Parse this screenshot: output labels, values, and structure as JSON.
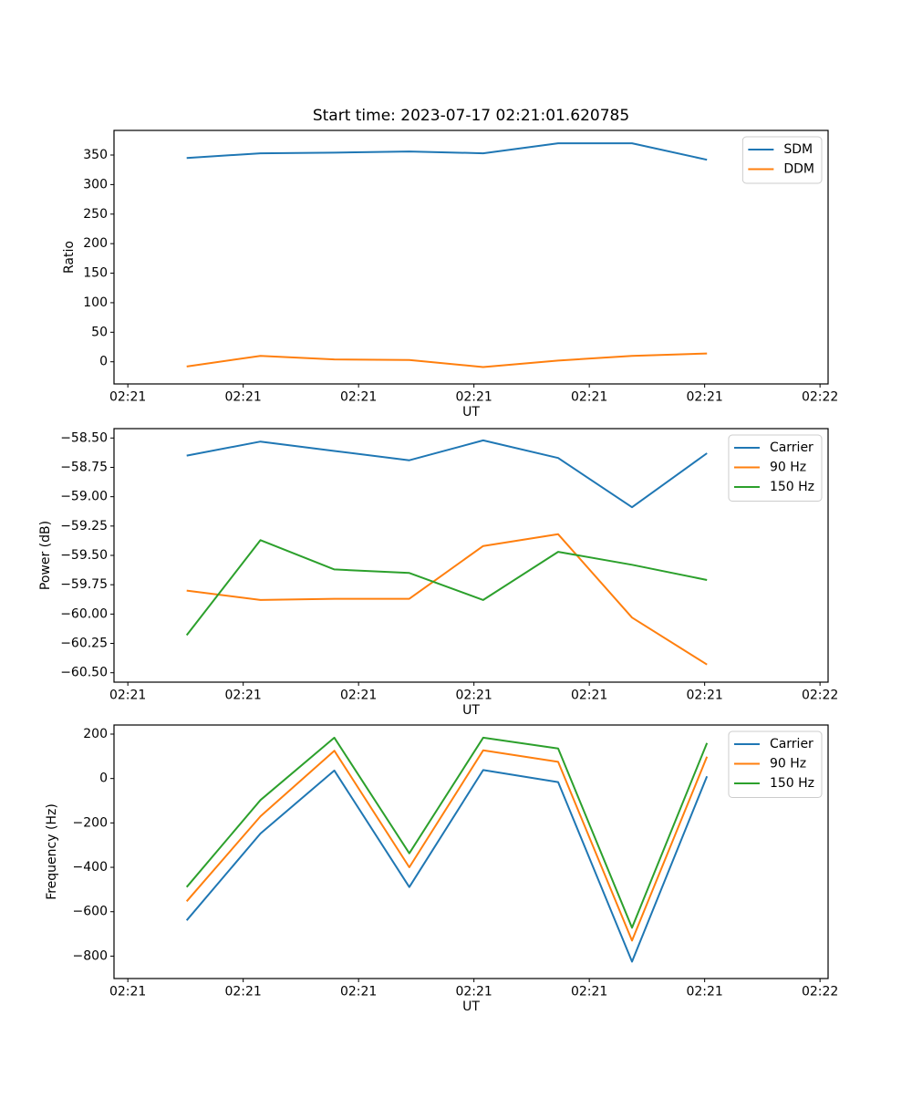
{
  "figure": {
    "title": "Start time: 2023-07-17 02:21:01.620785"
  },
  "colors": {
    "blue": "#1f77b4",
    "orange": "#ff7f0e",
    "green": "#2ca02c",
    "axis": "#000000",
    "legend_border": "#cccccc",
    "background": "#ffffff"
  },
  "x_axis": {
    "label": "UT",
    "tick_seconds": [
      0,
      10,
      20,
      30,
      40,
      50,
      60
    ],
    "tick_labels": [
      "02:21",
      "02:21",
      "02:21",
      "02:21",
      "02:21",
      "02:21",
      "02:22"
    ],
    "xlim_seconds": [
      -1.2,
      60.7
    ]
  },
  "x_seconds": [
    5.1,
    11.5,
    17.9,
    24.4,
    30.8,
    37.3,
    43.7,
    50.2
  ],
  "chart_data": [
    {
      "type": "line",
      "title": "",
      "xlabel": "UT",
      "ylabel": "Ratio",
      "grid": false,
      "legend_position": "upper right",
      "ylim": [
        -37.5,
        391.7
      ],
      "yticks": [
        0,
        50,
        100,
        150,
        200,
        250,
        300,
        350
      ],
      "ytick_labels": [
        "0",
        "50",
        "100",
        "150",
        "200",
        "250",
        "300",
        "350"
      ],
      "series": [
        {
          "name": "SDM",
          "color": "#1f77b4",
          "values": [
            345,
            353,
            354,
            356,
            353,
            370,
            370,
            342
          ]
        },
        {
          "name": "DDM",
          "color": "#ff7f0e",
          "values": [
            -8,
            10,
            4,
            3,
            -9,
            2,
            10,
            14
          ]
        }
      ]
    },
    {
      "type": "line",
      "title": "",
      "xlabel": "UT",
      "ylabel": "Power (dB)",
      "grid": false,
      "legend_position": "upper right",
      "ylim": [
        -60.58,
        -58.42
      ],
      "yticks": [
        -60.5,
        -60.25,
        -60.0,
        -59.75,
        -59.5,
        -59.25,
        -59.0,
        -58.75,
        -58.5
      ],
      "ytick_labels": [
        "−60.50",
        "−60.25",
        "−60.00",
        "−59.75",
        "−59.50",
        "−59.25",
        "−59.00",
        "−58.75",
        "−58.50"
      ],
      "series": [
        {
          "name": "Carrier",
          "color": "#1f77b4",
          "values": [
            -58.65,
            -58.53,
            -58.61,
            -58.69,
            -58.52,
            -58.67,
            -59.09,
            -58.63
          ]
        },
        {
          "name": "90 Hz",
          "color": "#ff7f0e",
          "values": [
            -59.8,
            -59.88,
            -59.87,
            -59.87,
            -59.42,
            -59.32,
            -60.03,
            -60.43
          ]
        },
        {
          "name": "150 Hz",
          "color": "#2ca02c",
          "values": [
            -60.18,
            -59.37,
            -59.62,
            -59.65,
            -59.88,
            -59.47,
            -59.58,
            -59.71
          ]
        }
      ]
    },
    {
      "type": "line",
      "title": "",
      "xlabel": "UT",
      "ylabel": "Frequency (Hz)",
      "grid": false,
      "legend_position": "upper right",
      "ylim": [
        -901,
        241
      ],
      "yticks": [
        -800,
        -600,
        -400,
        -200,
        0,
        200
      ],
      "ytick_labels": [
        "−800",
        "−600",
        "−400",
        "−200",
        "0",
        "200"
      ],
      "series": [
        {
          "name": "Carrier",
          "color": "#1f77b4",
          "values": [
            -639,
            -248,
            36,
            -489,
            38,
            -16,
            -825,
            10
          ]
        },
        {
          "name": "90 Hz",
          "color": "#ff7f0e",
          "values": [
            -553,
            -170,
            125,
            -400,
            127,
            75,
            -730,
            98
          ]
        },
        {
          "name": "150 Hz",
          "color": "#2ca02c",
          "values": [
            -489,
            -97,
            184,
            -337,
            184,
            135,
            -672,
            160
          ]
        }
      ]
    }
  ]
}
